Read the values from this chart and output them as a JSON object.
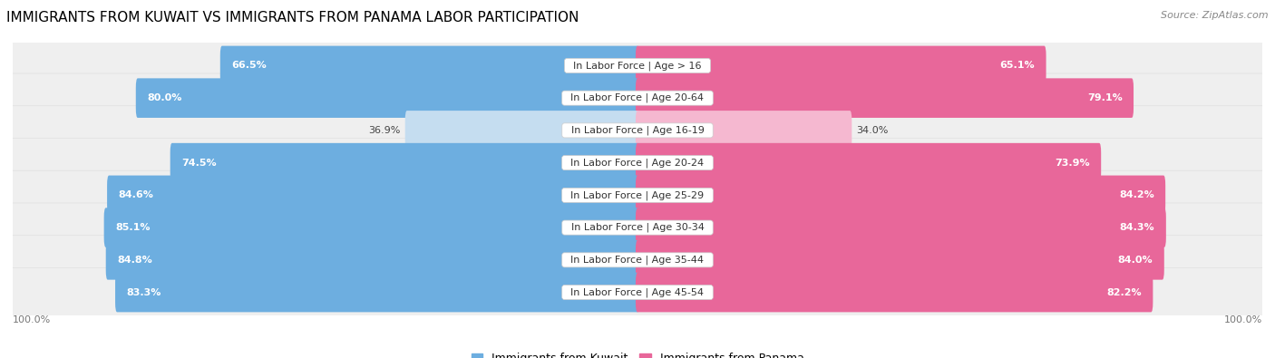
{
  "title": "IMMIGRANTS FROM KUWAIT VS IMMIGRANTS FROM PANAMA LABOR PARTICIPATION",
  "source": "Source: ZipAtlas.com",
  "categories": [
    "In Labor Force | Age > 16",
    "In Labor Force | Age 20-64",
    "In Labor Force | Age 16-19",
    "In Labor Force | Age 20-24",
    "In Labor Force | Age 25-29",
    "In Labor Force | Age 30-34",
    "In Labor Force | Age 35-44",
    "In Labor Force | Age 45-54"
  ],
  "kuwait_values": [
    66.5,
    80.0,
    36.9,
    74.5,
    84.6,
    85.1,
    84.8,
    83.3
  ],
  "panama_values": [
    65.1,
    79.1,
    34.0,
    73.9,
    84.2,
    84.3,
    84.0,
    82.2
  ],
  "kuwait_color": "#6daee0",
  "kuwait_color_light": "#c5ddf0",
  "panama_color": "#e8679a",
  "panama_color_light": "#f5b8d0",
  "row_bg_color": "#efefef",
  "row_bg_outline": "#e0e0e0",
  "label_fontsize": 8,
  "value_fontsize": 8,
  "title_fontsize": 11,
  "legend_fontsize": 9,
  "max_value": 100.0,
  "bar_height": 0.62,
  "legend_kuwait": "Immigrants from Kuwait",
  "legend_panama": "Immigrants from Panama",
  "light_threshold": 50
}
